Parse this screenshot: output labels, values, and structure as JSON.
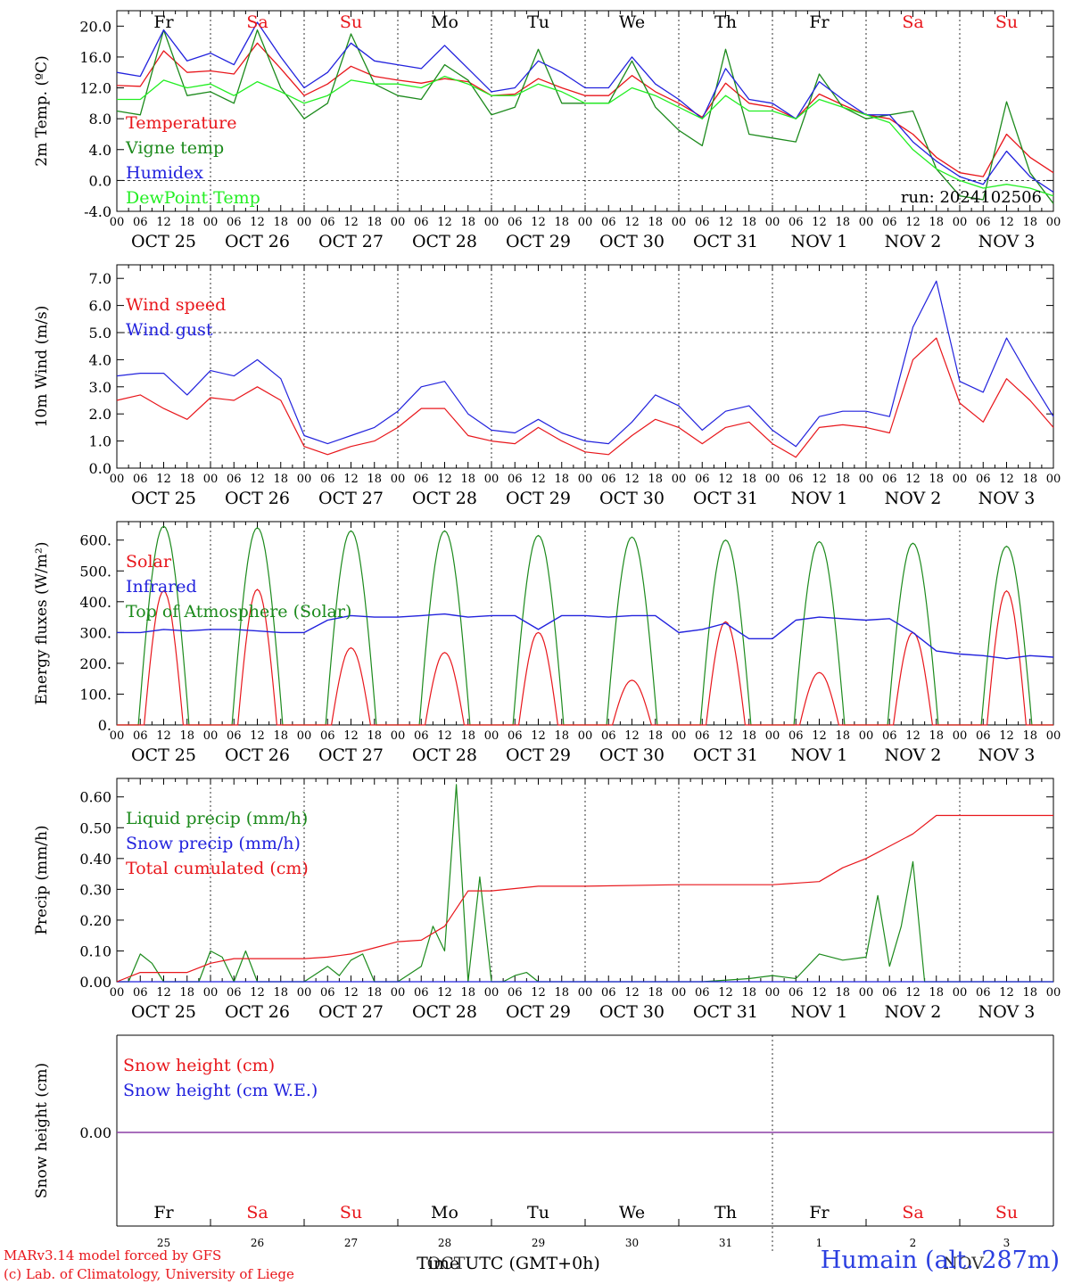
{
  "colors": {
    "red": "#e8161b",
    "green": "#1c8a1c",
    "blue": "#2222dd",
    "lightgreen": "#22ee22",
    "purple": "#8b3fa6",
    "black": "#000000"
  },
  "days": {
    "labels": [
      "Fr",
      "Sa",
      "Su",
      "Mo",
      "Tu",
      "We",
      "Th",
      "Fr",
      "Sa",
      "Su"
    ],
    "weekend": [
      false,
      true,
      true,
      false,
      false,
      false,
      false,
      false,
      true,
      true
    ],
    "dates": [
      "OCT 25",
      "OCT 26",
      "OCT 27",
      "OCT 28",
      "OCT 29",
      "OCT 30",
      "OCT 31",
      "NOV  1",
      "NOV  2",
      "NOV  3"
    ],
    "numbers": [
      "25",
      "26",
      "27",
      "28",
      "29",
      "30",
      "31",
      "1",
      "2",
      "3"
    ],
    "hour_ticks": [
      "00",
      "06",
      "12",
      "18"
    ],
    "final_tick": "00"
  },
  "footer": {
    "model": "MARv3.14 model forced by GFS",
    "lab": "(c) Lab. of Climatology, University of Liege",
    "time_axis_label": "Time UTC (GMT+0h)",
    "overlap_label": "OCT",
    "station": "Humain (alt. 287m)",
    "nov_overlay": "NOV"
  },
  "chart_data": [
    {
      "type": "line",
      "ylabel": "2m Temp. (ºC)",
      "ylim": [
        -4,
        22
      ],
      "yticks": [
        "-4.0",
        "0.0",
        "4.0",
        "8.0",
        "12.0",
        "16.0",
        "20.0"
      ],
      "ytick_values": [
        -4,
        0,
        4,
        8,
        12,
        16,
        20
      ],
      "reference_line": 0,
      "annotation": "run: 2024102506",
      "x_hours": [
        0,
        6,
        12,
        18,
        24,
        30,
        36,
        42,
        48,
        54,
        60,
        66,
        72,
        78,
        84,
        90,
        96,
        102,
        108,
        114,
        120,
        126,
        132,
        138,
        144,
        150,
        156,
        162,
        168,
        174,
        180,
        186,
        192,
        198,
        204,
        210,
        216,
        222,
        228,
        234,
        240
      ],
      "series": [
        {
          "name": "Temperature",
          "color": "red",
          "values": [
            12.3,
            12.2,
            16.8,
            14.0,
            14.2,
            13.8,
            17.8,
            14.5,
            11.0,
            12.5,
            14.8,
            13.5,
            13.0,
            12.6,
            13.2,
            12.8,
            11.0,
            11.2,
            13.2,
            12.0,
            11.0,
            11.0,
            13.6,
            11.5,
            10.0,
            8.2,
            12.6,
            10.0,
            9.5,
            8.0,
            11.2,
            9.8,
            8.5,
            8.0,
            6.0,
            3.0,
            1.0,
            0.5,
            6.0,
            3.0,
            1.0
          ]
        },
        {
          "name": "Vigne temp",
          "color": "green",
          "values": [
            9.0,
            8.5,
            19.5,
            11.0,
            11.5,
            10.0,
            19.5,
            12.0,
            8.0,
            10.0,
            19.0,
            12.5,
            11.0,
            10.5,
            15.0,
            13.0,
            8.5,
            9.5,
            17.0,
            10.0,
            10.0,
            10.0,
            15.5,
            9.5,
            6.5,
            4.5,
            17.0,
            6.0,
            5.5,
            5.0,
            13.8,
            9.5,
            8.0,
            8.5,
            9.0,
            1.5,
            -2.0,
            -2.5,
            10.2,
            1.0,
            -3.0
          ]
        },
        {
          "name": "Humidex",
          "color": "blue",
          "values": [
            14.0,
            13.5,
            19.5,
            15.5,
            16.5,
            15.0,
            20.5,
            16.0,
            12.0,
            14.0,
            17.8,
            15.5,
            15.0,
            14.5,
            17.5,
            14.5,
            11.5,
            12.0,
            15.5,
            14.0,
            12.0,
            12.0,
            16.0,
            12.5,
            10.5,
            8.0,
            14.5,
            10.5,
            10.0,
            8.0,
            12.8,
            10.5,
            8.5,
            8.5,
            5.0,
            2.5,
            0.5,
            -0.5,
            3.8,
            0.5,
            -1.5
          ]
        },
        {
          "name": "DewPoint Temp",
          "color": "lightgreen",
          "values": [
            10.5,
            10.5,
            13.0,
            12.0,
            12.5,
            11.0,
            12.8,
            11.5,
            10.0,
            11.0,
            13.0,
            12.5,
            12.5,
            12.0,
            13.5,
            12.5,
            11.0,
            11.0,
            12.5,
            11.5,
            10.0,
            10.0,
            12.0,
            11.0,
            9.5,
            8.0,
            11.0,
            9.0,
            9.0,
            8.0,
            10.5,
            9.5,
            8.5,
            7.5,
            4.0,
            1.5,
            0.0,
            -1.0,
            -0.5,
            -1.0,
            -2.0
          ]
        }
      ]
    },
    {
      "type": "line",
      "ylabel": "10m Wind (m/s)",
      "ylim": [
        0,
        7.5
      ],
      "yticks": [
        "0.0",
        "1.0",
        "2.0",
        "3.0",
        "4.0",
        "5.0",
        "6.0",
        "7.0"
      ],
      "ytick_values": [
        0,
        1,
        2,
        3,
        4,
        5,
        6,
        7
      ],
      "reference_line": 5,
      "x_hours": [
        0,
        6,
        12,
        18,
        24,
        30,
        36,
        42,
        48,
        54,
        60,
        66,
        72,
        78,
        84,
        90,
        96,
        102,
        108,
        114,
        120,
        126,
        132,
        138,
        144,
        150,
        156,
        162,
        168,
        174,
        180,
        186,
        192,
        198,
        204,
        210,
        216,
        222,
        228,
        234,
        240
      ],
      "series": [
        {
          "name": "Wind speed",
          "color": "red",
          "values": [
            2.5,
            2.7,
            2.2,
            1.8,
            2.6,
            2.5,
            3.0,
            2.5,
            0.8,
            0.5,
            0.8,
            1.0,
            1.5,
            2.2,
            2.2,
            1.2,
            1.0,
            0.9,
            1.5,
            1.0,
            0.6,
            0.5,
            1.2,
            1.8,
            1.5,
            0.9,
            1.5,
            1.7,
            0.9,
            0.4,
            1.5,
            1.6,
            1.5,
            1.3,
            4.0,
            4.8,
            2.4,
            1.7,
            3.3,
            2.5,
            1.5
          ]
        },
        {
          "name": "Wind gust",
          "color": "blue",
          "values": [
            3.4,
            3.5,
            3.5,
            2.7,
            3.6,
            3.4,
            4.0,
            3.3,
            1.2,
            0.9,
            1.2,
            1.5,
            2.1,
            3.0,
            3.2,
            2.0,
            1.4,
            1.3,
            1.8,
            1.3,
            1.0,
            0.9,
            1.7,
            2.7,
            2.3,
            1.4,
            2.1,
            2.3,
            1.4,
            0.8,
            1.9,
            2.1,
            2.1,
            1.9,
            5.2,
            6.9,
            3.2,
            2.8,
            4.8,
            3.3,
            1.9
          ]
        }
      ]
    },
    {
      "type": "line",
      "ylabel": "Energy fluxes (W/m²)",
      "ylim": [
        0,
        660
      ],
      "yticks": [
        "0.",
        "100.",
        "200.",
        "300.",
        "400.",
        "500.",
        "600."
      ],
      "ytick_values": [
        0,
        100,
        200,
        300,
        400,
        500,
        600
      ],
      "daily_peak_hour": 12,
      "top_of_atmosphere_peaks": [
        645,
        640,
        630,
        630,
        615,
        610,
        600,
        595,
        590,
        580
      ],
      "solar_peaks": [
        435,
        440,
        250,
        235,
        300,
        145,
        335,
        170,
        300,
        435
      ],
      "series": [
        {
          "name": "Solar",
          "color": "red"
        },
        {
          "name": "Infrared",
          "color": "blue",
          "x_hours": [
            0,
            6,
            12,
            18,
            24,
            30,
            36,
            42,
            48,
            54,
            60,
            66,
            72,
            78,
            84,
            90,
            96,
            102,
            108,
            114,
            120,
            126,
            132,
            138,
            144,
            150,
            156,
            162,
            168,
            174,
            180,
            186,
            192,
            198,
            204,
            210,
            216,
            222,
            228,
            234,
            240
          ],
          "values": [
            300,
            300,
            310,
            305,
            310,
            310,
            305,
            300,
            300,
            340,
            355,
            350,
            350,
            355,
            360,
            350,
            355,
            355,
            310,
            355,
            355,
            350,
            355,
            355,
            300,
            310,
            330,
            280,
            280,
            340,
            350,
            345,
            340,
            345,
            300,
            240,
            230,
            225,
            215,
            225,
            220
          ]
        },
        {
          "name": "Top of Atmosphere (Solar)",
          "color": "green"
        }
      ]
    },
    {
      "type": "line",
      "ylabel": "Precip (mm/h)",
      "ylim": [
        0,
        0.66
      ],
      "yticks": [
        "0.00",
        "0.10",
        "0.20",
        "0.30",
        "0.40",
        "0.50",
        "0.60"
      ],
      "ytick_values": [
        0,
        0.1,
        0.2,
        0.3,
        0.4,
        0.5,
        0.6
      ],
      "series": [
        {
          "name": "Liquid precip (mm/h)",
          "color": "green",
          "x_hours": [
            0,
            3,
            6,
            9,
            12,
            15,
            18,
            21,
            24,
            27,
            30,
            33,
            36,
            42,
            48,
            54,
            57,
            60,
            63,
            66,
            69,
            72,
            78,
            81,
            84,
            87,
            90,
            93,
            96,
            99,
            102,
            105,
            108,
            114,
            120,
            150,
            162,
            168,
            174,
            180,
            186,
            192,
            195,
            198,
            201,
            204,
            207,
            210,
            213,
            216,
            219,
            222,
            240
          ],
          "values": [
            0,
            0,
            0.09,
            0.06,
            0,
            0,
            0,
            0,
            0.1,
            0.08,
            0,
            0.1,
            0,
            0,
            0,
            0.05,
            0.02,
            0.07,
            0.09,
            0,
            0,
            0,
            0.05,
            0.18,
            0.1,
            0.64,
            0,
            0.34,
            0,
            0,
            0.02,
            0.03,
            0,
            0,
            0,
            0,
            0.01,
            0.02,
            0.01,
            0.09,
            0.07,
            0.08,
            0.28,
            0.05,
            0.18,
            0.39,
            0,
            0,
            0,
            0,
            0,
            0,
            0
          ]
        },
        {
          "name": "Snow precip (mm/h)",
          "color": "blue",
          "x_hours": [
            0,
            240
          ],
          "values": [
            0,
            0
          ]
        },
        {
          "name": "Total cumulated (cm)",
          "color": "red",
          "x_hours": [
            0,
            6,
            12,
            18,
            24,
            30,
            36,
            48,
            54,
            60,
            66,
            72,
            78,
            84,
            90,
            96,
            108,
            120,
            144,
            168,
            180,
            186,
            192,
            198,
            204,
            210,
            216,
            240
          ],
          "values": [
            0,
            0.03,
            0.03,
            0.03,
            0.06,
            0.075,
            0.075,
            0.075,
            0.08,
            0.09,
            0.11,
            0.13,
            0.135,
            0.18,
            0.295,
            0.295,
            0.31,
            0.31,
            0.315,
            0.315,
            0.325,
            0.37,
            0.4,
            0.44,
            0.48,
            0.54,
            0.54,
            0.54
          ]
        }
      ]
    },
    {
      "type": "line",
      "ylabel": "Snow height (cm)",
      "yticks": [
        "0.00"
      ],
      "ytick_values": [
        0
      ],
      "series": [
        {
          "name": "Snow height (cm)",
          "color": "red"
        },
        {
          "name": "Snow height (cm W.E.)",
          "color": "blue"
        }
      ]
    }
  ]
}
